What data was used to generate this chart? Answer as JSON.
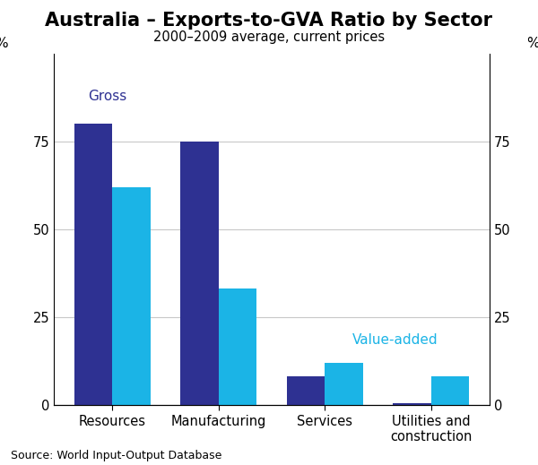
{
  "title": "Australia – Exports-to-GVA Ratio by Sector",
  "subtitle": "2000–2009 average, current prices",
  "categories": [
    "Resources",
    "Manufacturing",
    "Services",
    "Utilities and\nconstruction"
  ],
  "gross_values": [
    80,
    75,
    8,
    0.5
  ],
  "value_added_values": [
    62,
    33,
    12,
    8
  ],
  "gross_color": "#2E3192",
  "value_added_color": "#1BB4E6",
  "ylim": [
    0,
    100
  ],
  "yticks": [
    0,
    25,
    50,
    75
  ],
  "ylabel_left": "%",
  "ylabel_right": "%",
  "source": "Source: World Input-Output Database",
  "gross_label": "Gross",
  "value_added_label": "Value-added",
  "background_color": "#ffffff",
  "title_fontsize": 15,
  "subtitle_fontsize": 10.5,
  "bar_width": 0.36,
  "grid_color": "#c8c8c8",
  "tick_label_fontsize": 10.5,
  "source_fontsize": 9
}
